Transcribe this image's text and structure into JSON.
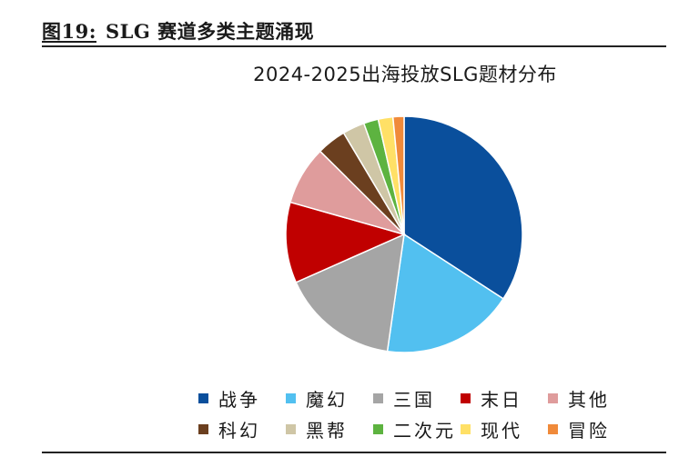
{
  "figure": {
    "label": "图19:",
    "title": "SLG 赛道多类主题涌现"
  },
  "chart_data": {
    "type": "pie",
    "title": "2024-2025出海投放SLG题材分布",
    "start": "12 o'clock",
    "direction": "clockwise",
    "legend_position": "bottom",
    "slices": [
      {
        "name": "战争",
        "value": 34,
        "color": "#0a4f9c"
      },
      {
        "name": "魔幻",
        "value": 18,
        "color": "#52c0f0"
      },
      {
        "name": "三国",
        "value": 16,
        "color": "#a5a5a5"
      },
      {
        "name": "末日",
        "value": 11,
        "color": "#c00000"
      },
      {
        "name": "其他",
        "value": 8,
        "color": "#df9c9c"
      },
      {
        "name": "科幻",
        "value": 4,
        "color": "#6b3f1f"
      },
      {
        "name": "黑帮",
        "value": 3,
        "color": "#cfc6a6"
      },
      {
        "name": "二次元",
        "value": 2,
        "color": "#5db340"
      },
      {
        "name": "现代",
        "value": 2,
        "color": "#ffe066"
      },
      {
        "name": "冒险",
        "value": 1.5,
        "color": "#f08a3a"
      }
    ]
  }
}
